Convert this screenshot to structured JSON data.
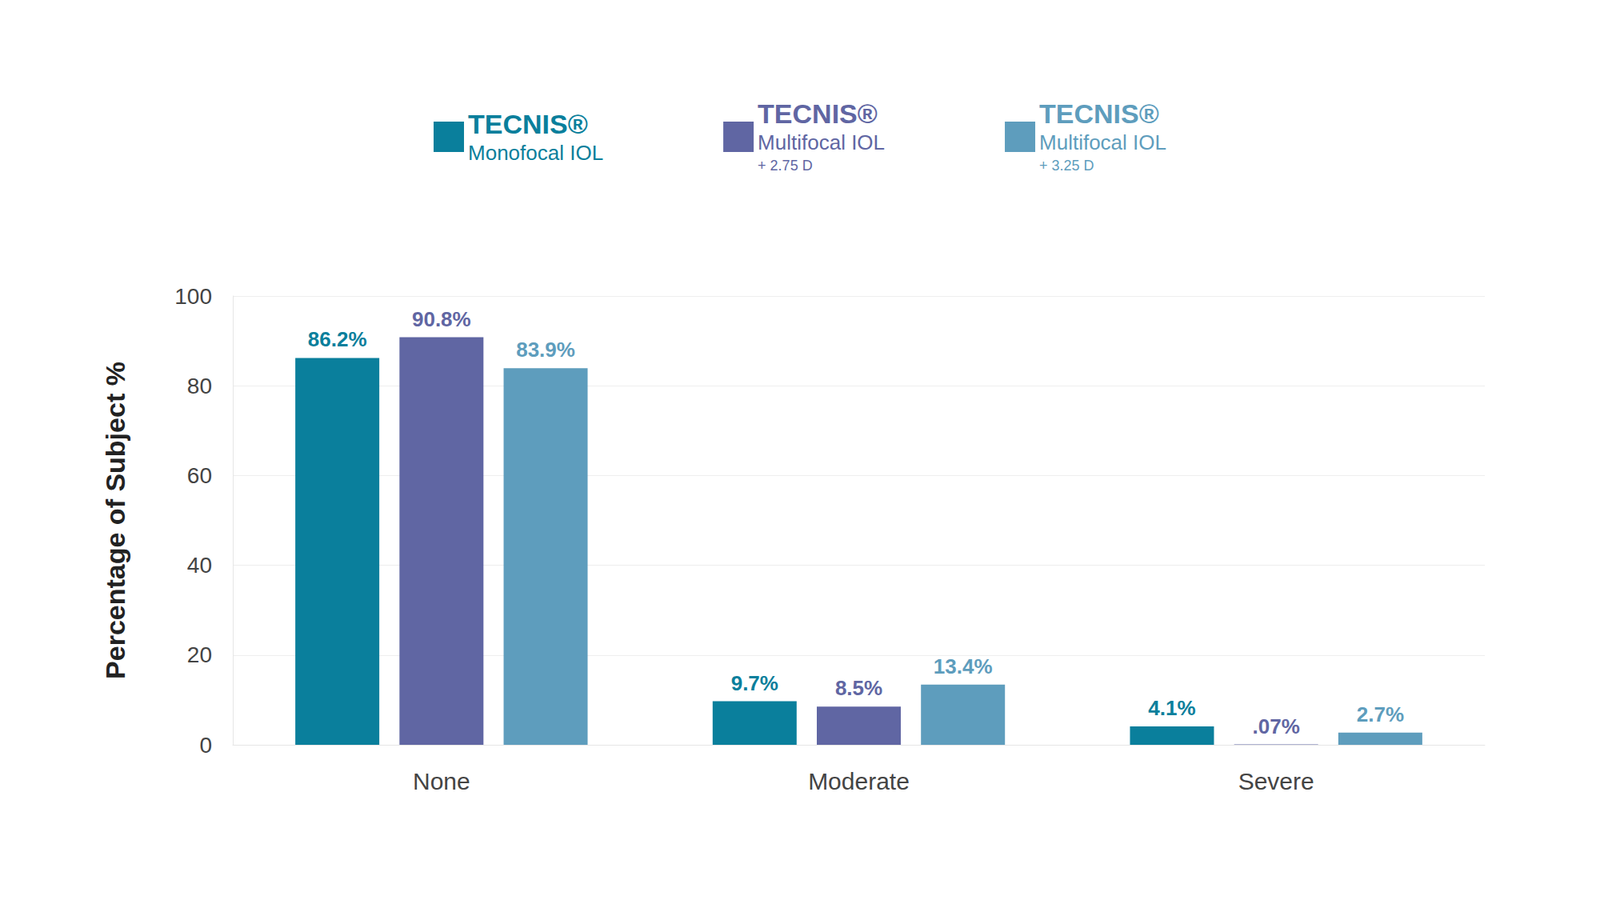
{
  "chart_data": {
    "type": "bar",
    "y_label": "Percentage of Subject %",
    "categories": [
      "None",
      "Moderate",
      "Severe"
    ],
    "series": [
      {
        "name": "TECNIS®\nMonofocal IOL",
        "color": "#0a7f9c",
        "values": [
          86.2,
          9.7,
          4.1
        ],
        "value_labels": [
          "86.2%",
          "9.7%",
          "4.1%"
        ]
      },
      {
        "name": "TECNIS®\nMultifocal IOL\n+ 2.75 D",
        "color": "#6066a3",
        "values": [
          90.8,
          8.5,
          0.07
        ],
        "value_labels": [
          "90.8%",
          "8.5%",
          ".07%"
        ]
      },
      {
        "name": "TECNIS®\nMultifocal IOL\n+ 3.25 D",
        "color": "#5e9dbd",
        "values": [
          83.9,
          13.4,
          2.7
        ],
        "value_labels": [
          "83.9%",
          "13.4%",
          "2.7%"
        ]
      }
    ],
    "ylim": [
      0,
      100
    ],
    "yticks": [
      0,
      20,
      40,
      60,
      80,
      100
    ],
    "grid": true,
    "legend": "top",
    "data_labels": true
  }
}
